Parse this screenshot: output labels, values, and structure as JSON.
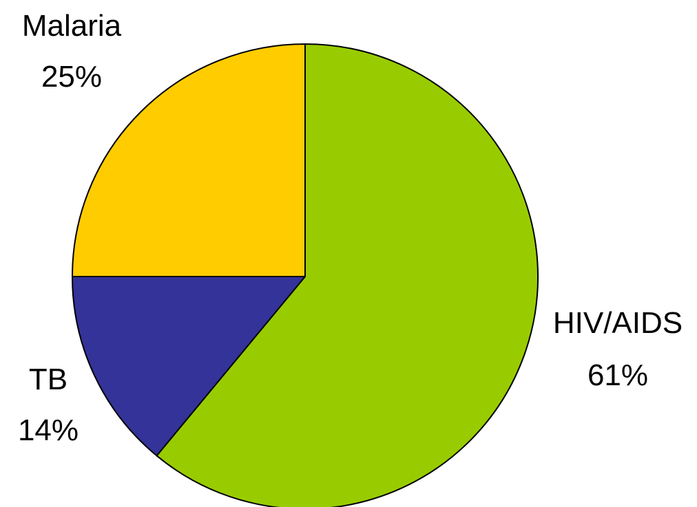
{
  "chart_data": {
    "type": "pie",
    "start_angle_deg": 0,
    "direction": "clockwise",
    "slices": [
      {
        "label": "HIV/AIDS",
        "value": 61,
        "value_label": "61%",
        "color": "#99cc00"
      },
      {
        "label": "TB",
        "value": 14,
        "value_label": "14%",
        "color": "#333399"
      },
      {
        "label": "Malaria",
        "value": 25,
        "value_label": "25%",
        "color": "#ffcc00"
      }
    ],
    "stroke_color": "#000000",
    "legend": "none"
  }
}
